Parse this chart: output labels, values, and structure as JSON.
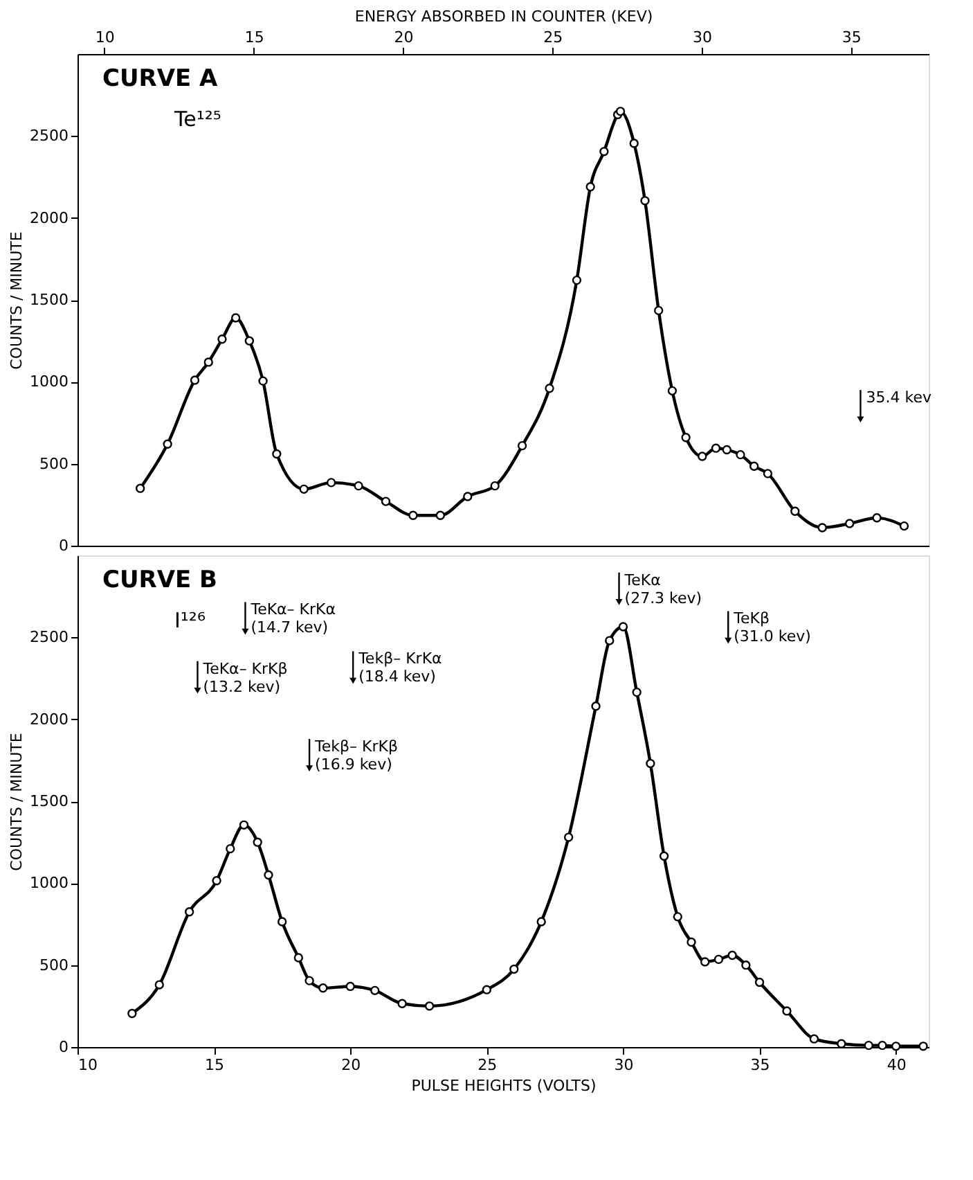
{
  "chart_data": [
    {
      "type": "line",
      "color": "#000000",
      "marker": "circle",
      "grid": false,
      "tick_labels": "y",
      "ylabel": "COUNTS / MINUTE",
      "x2label": "ENERGY ABSORBED IN COUNTER (KEV)",
      "xlim": [
        10,
        41.2
      ],
      "ylim": [
        0,
        3000
      ],
      "yticks": [
        0,
        500,
        1000,
        1500,
        2000,
        2500
      ],
      "x2lim": [
        9.1,
        37.6
      ],
      "x2ticks": [
        10,
        15,
        20,
        25,
        30,
        35
      ],
      "x": [
        12.3,
        13.3,
        14.3,
        14.8,
        15.3,
        15.8,
        16.3,
        16.8,
        17.3,
        18.3,
        19.3,
        20.3,
        21.3,
        22.3,
        23.3,
        24.3,
        25.3,
        26.3,
        27.3,
        28.3,
        28.8,
        29.3,
        29.8,
        29.9,
        30.4,
        30.8,
        31.3,
        31.8,
        32.3,
        32.9,
        33.4,
        33.8,
        34.3,
        34.8,
        35.3,
        36.3,
        37.3,
        38.3,
        39.3,
        40.3
      ],
      "values": [
        350,
        620,
        1010,
        1120,
        1260,
        1390,
        1250,
        1005,
        560,
        345,
        385,
        365,
        270,
        185,
        185,
        300,
        365,
        610,
        960,
        1620,
        2190,
        2405,
        2630,
        2650,
        2455,
        2105,
        1435,
        945,
        660,
        545,
        595,
        585,
        555,
        485,
        440,
        210,
        110,
        135,
        170,
        120
      ],
      "annotations": [
        "CURVE A",
        "Te¹²⁵",
        {
          "text": "35.4 kev",
          "x": 38.7,
          "y": 770
        }
      ]
    },
    {
      "type": "line",
      "color": "#000000",
      "marker": "circle",
      "grid": false,
      "xlabel": "PULSE HEIGHTS (VOLTS)",
      "ylabel": "COUNTS / MINUTE",
      "xlim": [
        10,
        41.2
      ],
      "ylim": [
        0,
        3000
      ],
      "xticks": [
        10,
        15,
        20,
        25,
        30,
        35,
        40
      ],
      "yticks": [
        0,
        500,
        1000,
        1500,
        2000,
        2500
      ],
      "x": [
        12,
        13,
        14.1,
        15.1,
        15.6,
        16.1,
        16.6,
        17,
        17.5,
        18.1,
        18.5,
        19,
        20,
        20.9,
        21.9,
        22.9,
        25,
        26,
        27,
        28,
        29,
        29.5,
        30,
        30.5,
        31,
        31.5,
        32,
        32.5,
        33,
        33.5,
        34,
        34.5,
        35,
        36,
        37,
        38,
        39,
        39.5,
        40,
        41
      ],
      "values": [
        205,
        380,
        825,
        1015,
        1210,
        1355,
        1250,
        1050,
        765,
        545,
        405,
        360,
        370,
        345,
        265,
        250,
        350,
        475,
        765,
        1280,
        2080,
        2480,
        2565,
        2165,
        1730,
        1165,
        795,
        640,
        520,
        535,
        560,
        500,
        395,
        220,
        50,
        20,
        10,
        10,
        5,
        5
      ],
      "annotations": [
        "CURVE B",
        "I¹²⁶",
        {
          "text": "TeKα\n(27.3 kev)",
          "x": 29.85,
          "y": 2715
        },
        {
          "text": "TeKβ\n(31.0 kev)",
          "x": 33.85,
          "y": 2480
        },
        {
          "text": "TeKα– KrKα\n(14.7 kev)",
          "x": 16.15,
          "y": 2535
        },
        {
          "text": "TeKα– KrKβ\n(13.2 kev)",
          "x": 14.4,
          "y": 2175
        },
        {
          "text": "Tekβ– KrKα\n(18.4 kev)",
          "x": 20.1,
          "y": 2235
        },
        {
          "text": "Tekβ– KrKβ\n(16.9 kev)",
          "x": 18.5,
          "y": 1700
        }
      ]
    }
  ]
}
